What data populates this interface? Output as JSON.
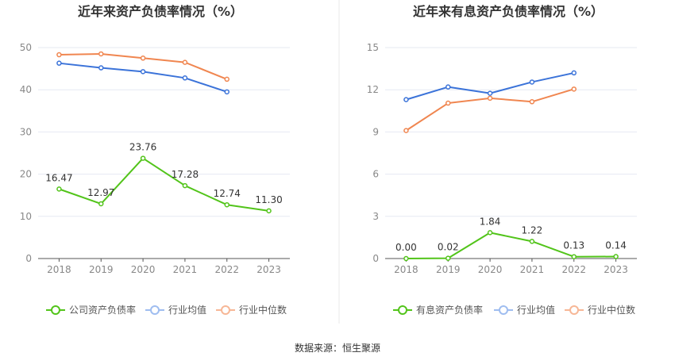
{
  "footer": {
    "source": "数据来源：恒生聚源"
  },
  "chart_data": [
    {
      "type": "line",
      "title": "近年来资产负债率情况（%）",
      "categories": [
        "2018",
        "2019",
        "2020",
        "2021",
        "2022",
        "2023"
      ],
      "ylim": [
        0,
        50
      ],
      "yticks": [
        0,
        10,
        20,
        30,
        40,
        50
      ],
      "grid": true,
      "legend_position": "bottom",
      "series": [
        {
          "name": "公司资产负债率",
          "color": "#52c41a",
          "values": [
            16.47,
            12.97,
            23.76,
            17.28,
            12.74,
            11.3
          ],
          "labels": [
            "16.47",
            "12.97",
            "23.76",
            "17.28",
            "12.74",
            "11.30"
          ]
        },
        {
          "name": "行业均值",
          "color": "#3b73d9",
          "values": [
            46.3,
            45.2,
            44.3,
            42.8,
            39.5,
            null
          ]
        },
        {
          "name": "行业中位数",
          "color": "#f08650",
          "values": [
            48.3,
            48.5,
            47.5,
            46.5,
            42.5,
            null
          ]
        }
      ]
    },
    {
      "type": "line",
      "title": "近年来有息资产负债率情况（%）",
      "categories": [
        "2018",
        "2019",
        "2020",
        "2021",
        "2022",
        "2023"
      ],
      "ylim": [
        0,
        15
      ],
      "yticks": [
        0,
        3,
        6,
        9,
        12,
        15
      ],
      "grid": true,
      "legend_position": "bottom",
      "series": [
        {
          "name": "有息资产负债率",
          "color": "#52c41a",
          "values": [
            0.0,
            0.02,
            1.84,
            1.22,
            0.13,
            0.14
          ],
          "labels": [
            "0.00",
            "0.02",
            "1.84",
            "1.22",
            "0.13",
            "0.14"
          ]
        },
        {
          "name": "行业均值",
          "color": "#3b73d9",
          "values": [
            11.3,
            12.2,
            11.75,
            12.55,
            13.2,
            null
          ]
        },
        {
          "name": "行业中位数",
          "color": "#f08650",
          "values": [
            9.1,
            11.05,
            11.4,
            11.15,
            12.05,
            null
          ]
        }
      ]
    }
  ]
}
